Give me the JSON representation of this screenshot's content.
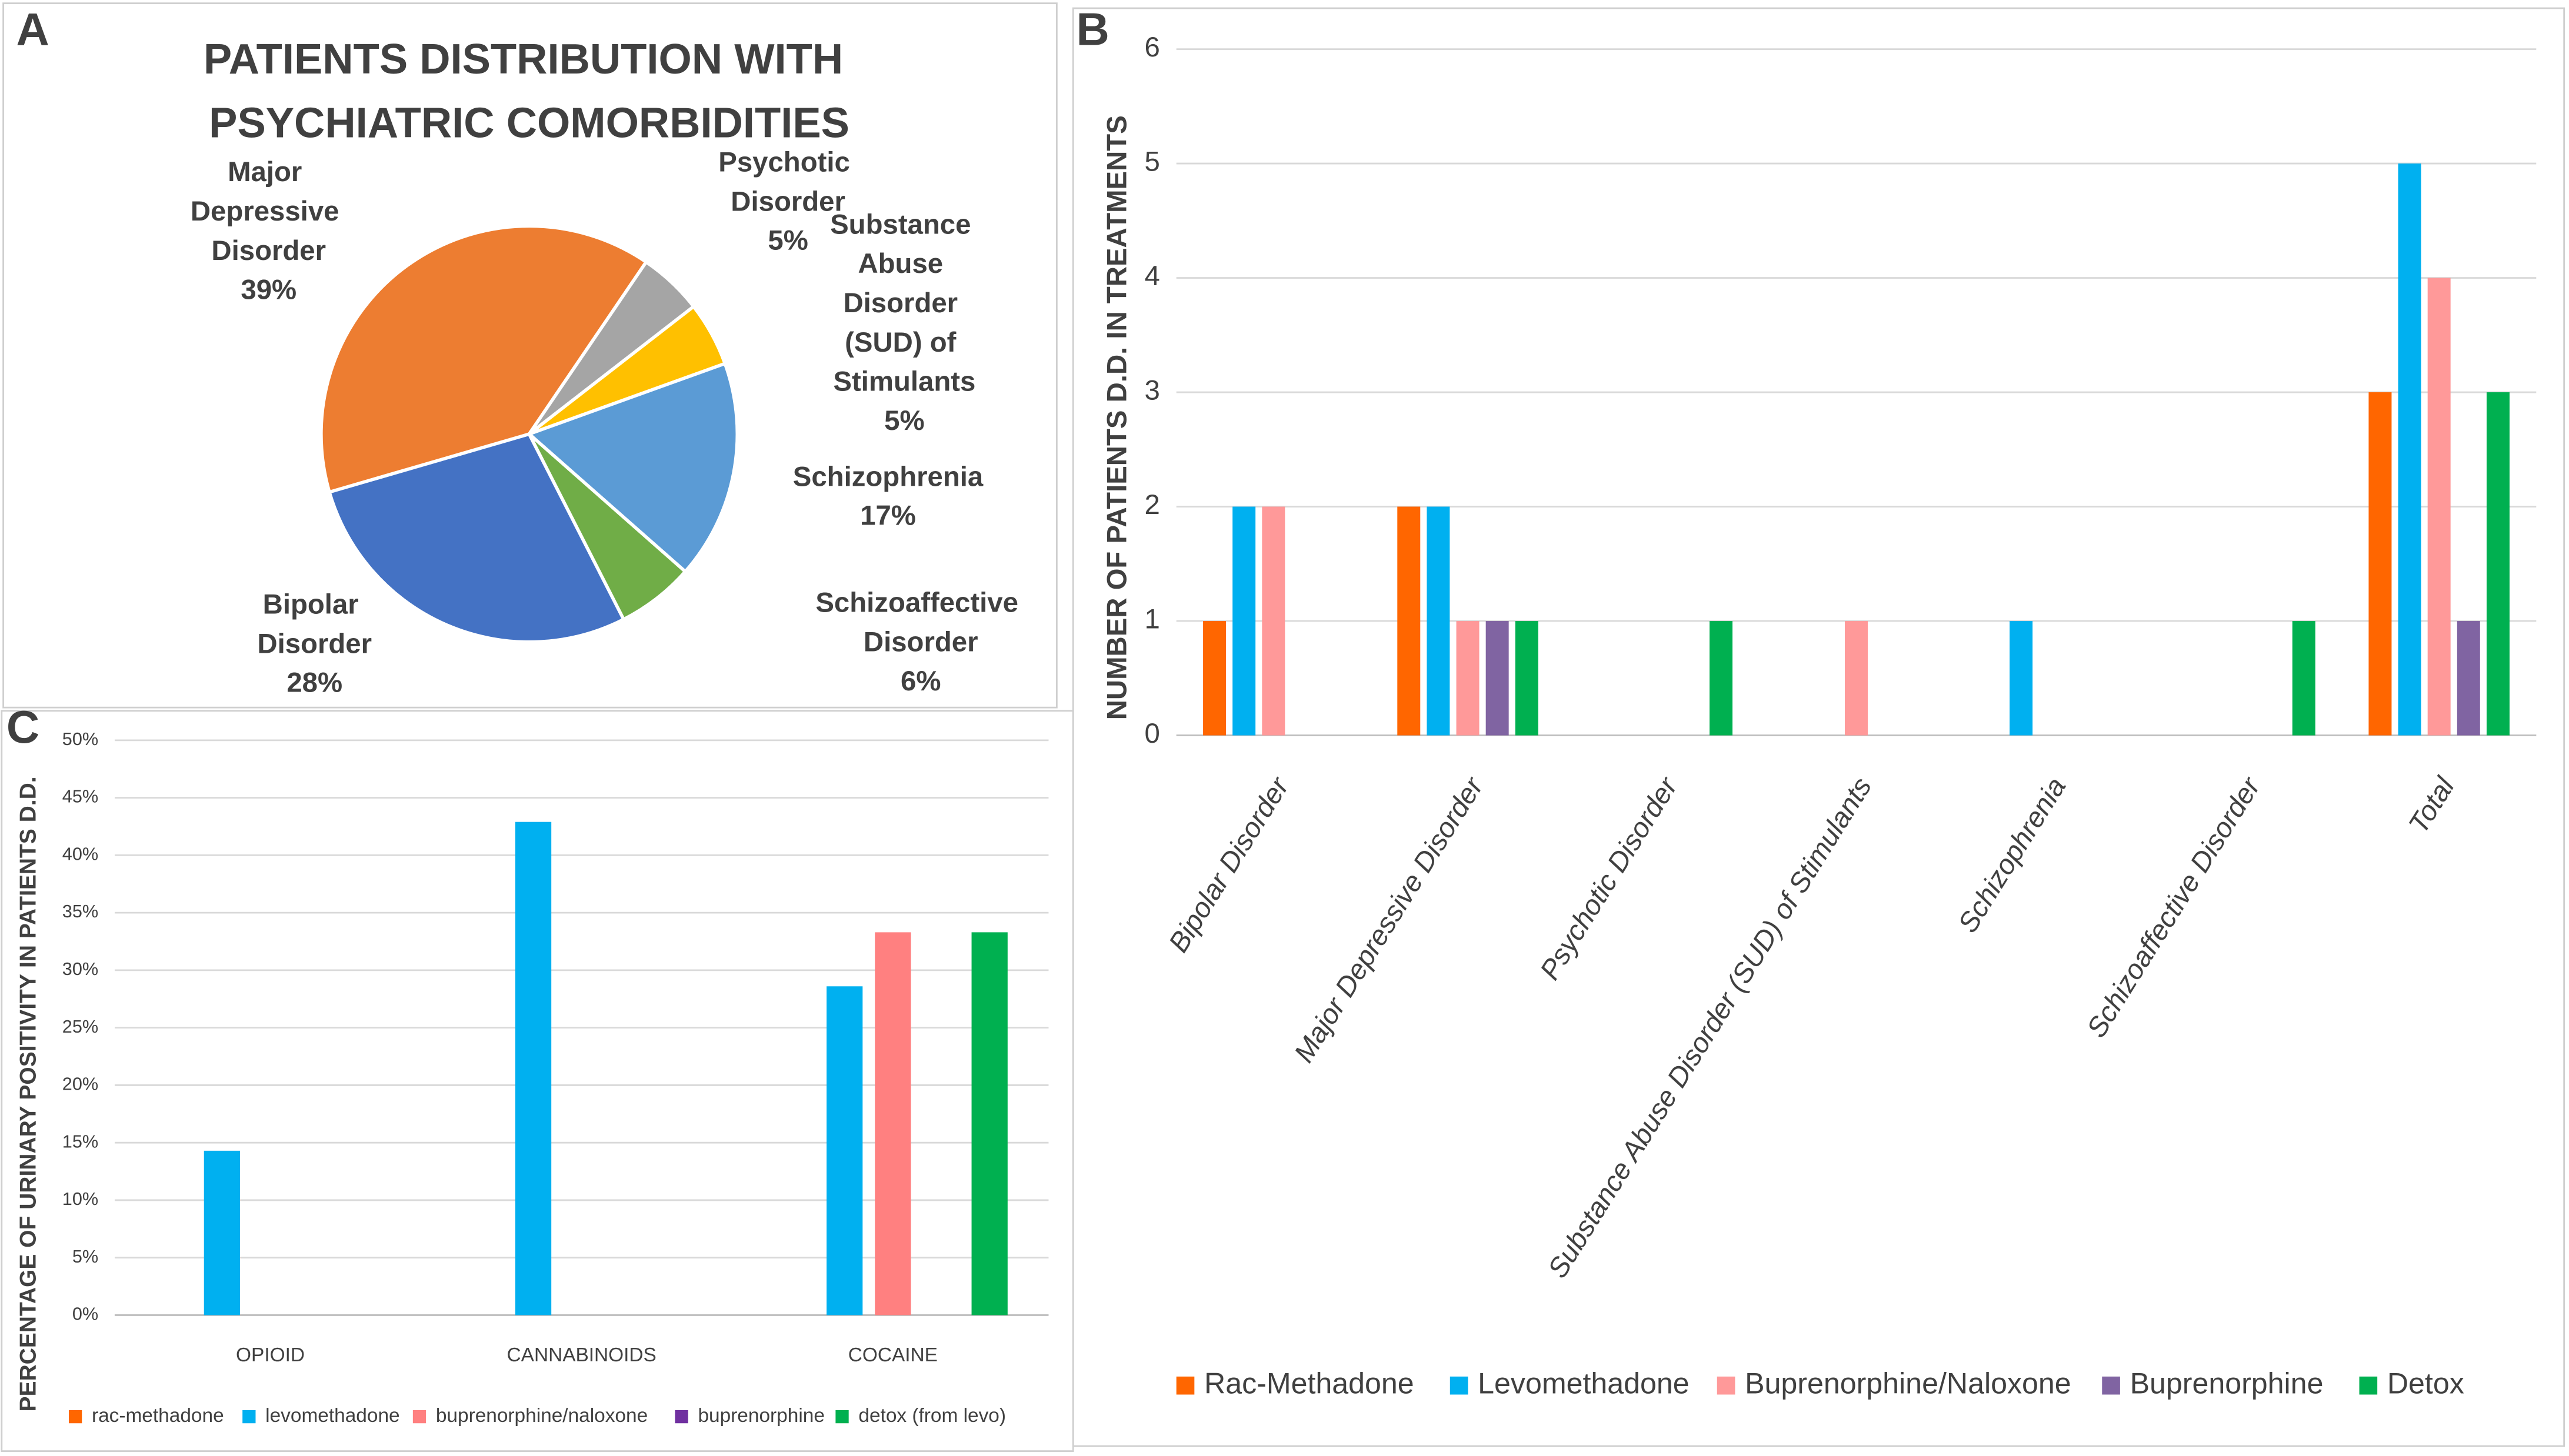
{
  "chart_data": [
    {
      "type": "pie",
      "label": "A",
      "title": "PATIENTS DISTRIBUTION WITH PSYCHIATRIC COMORBIDITIES",
      "categories": [
        "Bipolar Disorder",
        "Major Depressive Disorder",
        "Psychotic Disorder",
        "Substance Abuse Disorder (SUD) of Stimulants",
        "Schizophrenia",
        "Schizoaffective Disorder"
      ],
      "values": [
        28,
        39,
        5,
        5,
        17,
        6
      ],
      "value_labels": [
        "28%",
        "39%",
        "5%",
        "5%",
        "17%",
        "6%"
      ],
      "colors": [
        "#4472c4",
        "#ed7d31",
        "#a5a5a5",
        "#ffc000",
        "#5b9bd5",
        "#70ad47"
      ]
    },
    {
      "type": "bar",
      "label": "B",
      "ylabel": "NUMBER OF PATIENTS D.D.  IN TREATMENTS",
      "categories": [
        "Bipolar Disorder",
        "Major Depressive Disorder",
        "Psychotic Disorder",
        "Substance Abuse Disorder (SUD) of Stimulants",
        "Schizophrenia",
        "Schizoaffective Disorder",
        "Total"
      ],
      "series": [
        {
          "name": "Rac-Methadone",
          "color": "#ff6600",
          "values": [
            1,
            2,
            0,
            0,
            0,
            0,
            3
          ]
        },
        {
          "name": "Levomethadone",
          "color": "#00b0f0",
          "values": [
            2,
            2,
            0,
            0,
            1,
            0,
            5
          ]
        },
        {
          "name": "Buprenorphine/Naloxone",
          "color": "#ff9999",
          "values": [
            2,
            1,
            0,
            1,
            0,
            0,
            4
          ]
        },
        {
          "name": "Buprenorphine",
          "color": "#8064a2",
          "values": [
            0,
            1,
            0,
            0,
            0,
            0,
            1
          ]
        },
        {
          "name": "Detox",
          "color": "#00b050",
          "values": [
            0,
            1,
            1,
            0,
            0,
            1,
            3
          ]
        }
      ],
      "ylim": [
        0,
        6
      ],
      "yticks": [
        0,
        1,
        2,
        3,
        4,
        5,
        6
      ],
      "grid": true,
      "legend": "bottom"
    },
    {
      "type": "bar",
      "label": "C",
      "ylabel": "PERCENTAGE OF URINARY POSITIVITY IN PATIENTS D.D.",
      "categories": [
        "OPIOID",
        "CANNABINOIDS",
        "COCAINE"
      ],
      "series": [
        {
          "name": "rac-methadone",
          "color": "#ff6600",
          "values": [
            0,
            0,
            0
          ]
        },
        {
          "name": "levomethadone",
          "color": "#00b0f0",
          "values": [
            14.3,
            42.9,
            28.6
          ]
        },
        {
          "name": "buprenorphine/naloxone",
          "color": "#ff8080",
          "values": [
            0,
            0,
            33.3
          ]
        },
        {
          "name": "buprenorphine",
          "color": "#7030a0",
          "values": [
            0,
            0,
            0
          ]
        },
        {
          "name": "detox (from levo)",
          "color": "#00b050",
          "values": [
            0,
            0,
            33.3
          ]
        }
      ],
      "ylim": [
        0,
        50
      ],
      "yticks": [
        {
          "value": 0,
          "label": "0%"
        },
        {
          "value": 5,
          "label": "5%"
        },
        {
          "value": 10,
          "label": "10%"
        },
        {
          "value": 15,
          "label": "15%"
        },
        {
          "value": 20,
          "label": "20%"
        },
        {
          "value": 25,
          "label": "25%"
        },
        {
          "value": 30,
          "label": "30%"
        },
        {
          "value": 35,
          "label": "35%"
        },
        {
          "value": 40,
          "label": "40%"
        },
        {
          "value": 45,
          "label": "45%"
        },
        {
          "value": 50,
          "label": "50%"
        }
      ],
      "grid": true,
      "legend": "bottom"
    }
  ]
}
